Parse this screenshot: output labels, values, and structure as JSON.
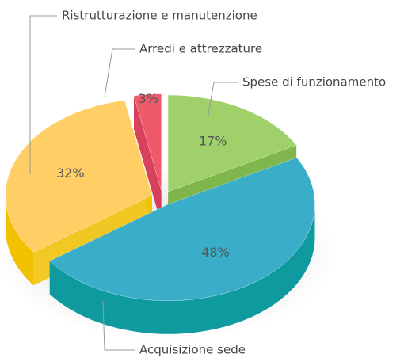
{
  "chart_data": {
    "type": "pie",
    "categories": [
      "Spese di funzionamento",
      "Acquisizione sede",
      "Ristrutturazione e manutenzione",
      "Arredi e attrezzature"
    ],
    "values": [
      17,
      48,
      32,
      3
    ],
    "value_labels": [
      "17%",
      "48%",
      "32%",
      "3%"
    ],
    "colors": [
      "#9fd06a",
      "#3aaec8",
      "#ffcf66",
      "#ee5a6a"
    ],
    "side_colors": [
      "#6aaa2e",
      "#0f9aa0",
      "#f2c200",
      "#d0203e"
    ]
  }
}
